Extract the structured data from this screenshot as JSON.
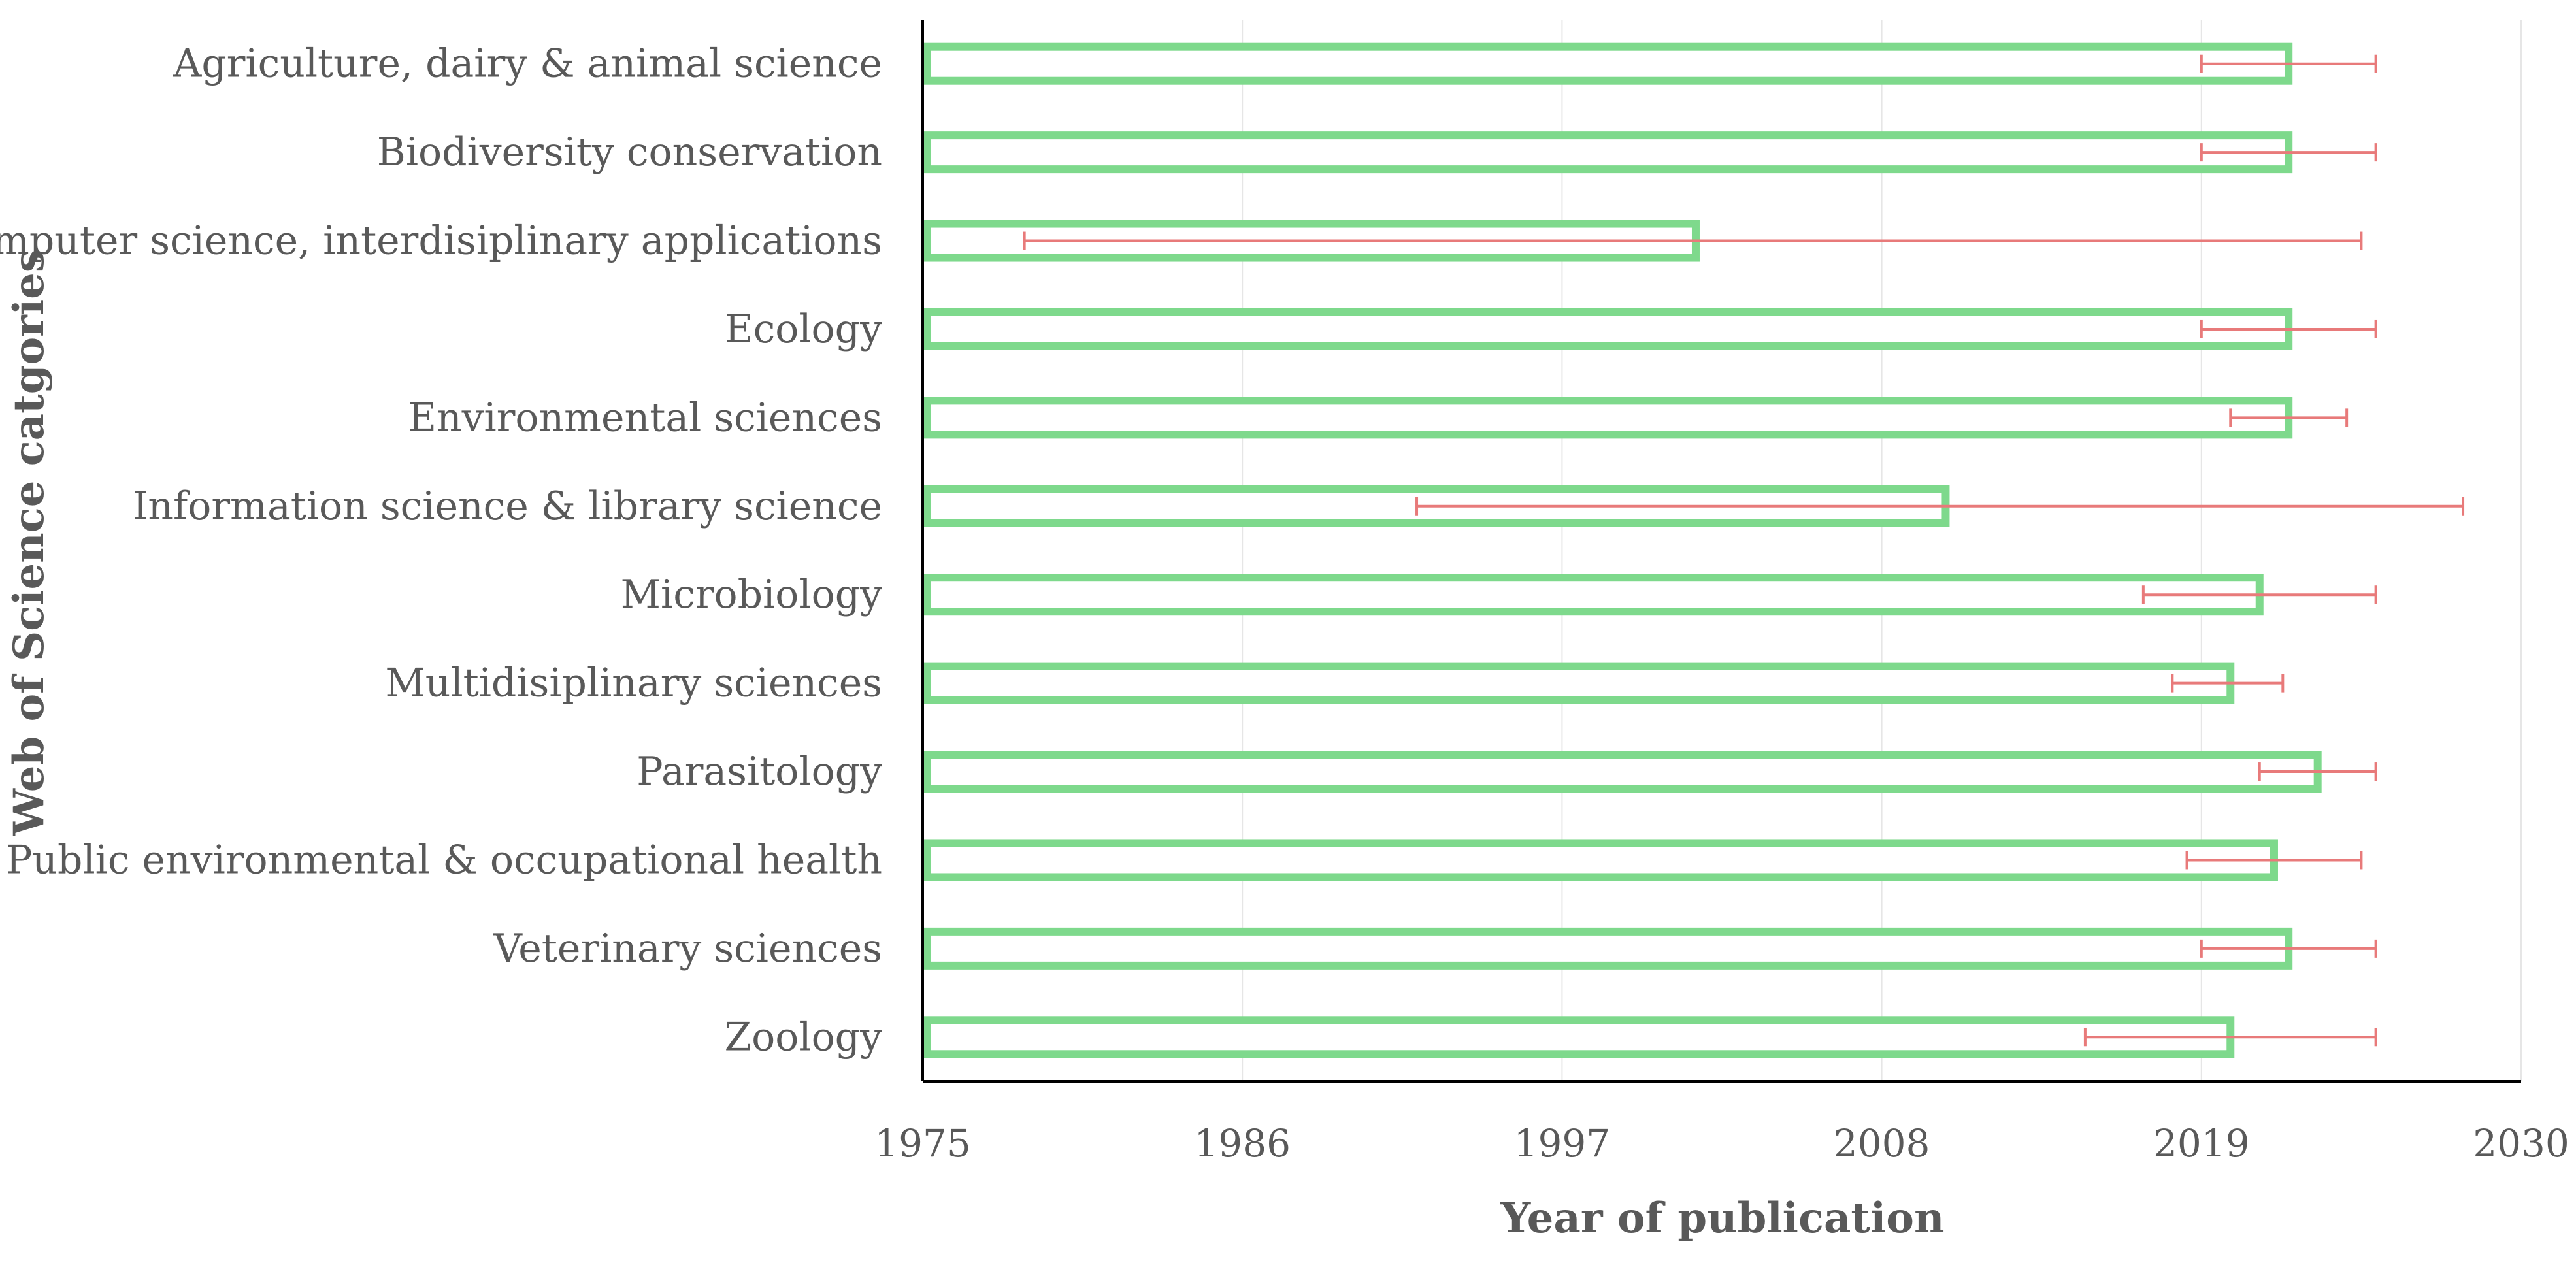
{
  "chart_data": {
    "type": "bar",
    "orientation": "horizontal",
    "title": "",
    "xlabel": "Year of publication",
    "ylabel": "Web of Science catgories",
    "xlim": [
      1975,
      2030
    ],
    "xticks": [
      1975,
      1986,
      1997,
      2008,
      2019,
      2030
    ],
    "grid": "vertical",
    "colors": {
      "bar": "#7ed98c",
      "error": "#e87a7a",
      "grid": "#e6e6e6",
      "axis": "#000000",
      "text": "#595959"
    },
    "categories": [
      "Agriculture, dairy & animal science",
      "Biodiversity conservation",
      "Computer science, interdisiplinary applications",
      "Ecology",
      "Environmental sciences",
      "Information science & library science",
      "Microbiology",
      "Multidisiplinary sciences",
      "Parasitology",
      "Public environmental & occupational health",
      "Veterinary sciences",
      "Zoology"
    ],
    "values": [
      2022,
      2022,
      2001.6,
      2022,
      2022,
      2010.2,
      2021,
      2020,
      2023,
      2021.5,
      2022,
      2020
    ],
    "error_low": [
      2019,
      2019,
      1978.5,
      2019,
      2020,
      1992,
      2017,
      2018,
      2021,
      2018.5,
      2019,
      2015
    ],
    "error_high": [
      2025,
      2025,
      2024.5,
      2025,
      2024,
      2028,
      2025,
      2021.8,
      2025,
      2024.5,
      2025,
      2025
    ]
  }
}
